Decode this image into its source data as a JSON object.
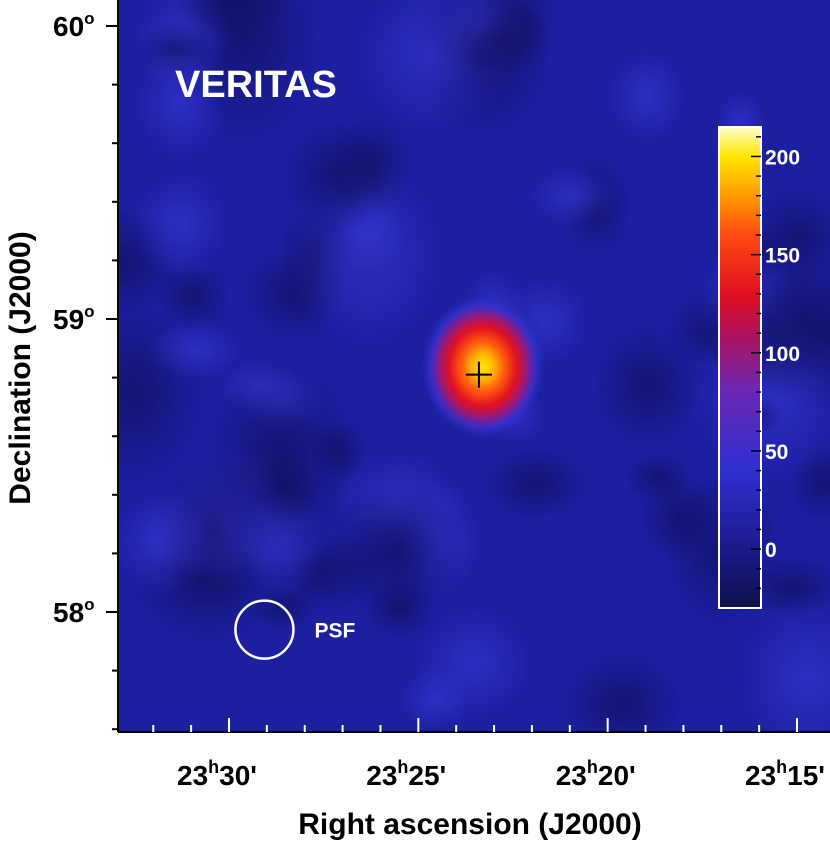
{
  "chart_data": {
    "type": "heatmap",
    "title": "VERITAS",
    "xlabel": "Right ascension (J2000)",
    "ylabel": "Declination (J2000)",
    "x_ticks": [
      {
        "value": 23.5,
        "label_hour": "23",
        "label_sup": "h",
        "label_min": "30'"
      },
      {
        "value": 23.4167,
        "label_hour": "23",
        "label_sup": "h",
        "label_min": "25'"
      },
      {
        "value": 23.3333,
        "label_hour": "23",
        "label_sup": "h",
        "label_min": "20'"
      },
      {
        "value": 23.25,
        "label_hour": "23",
        "label_sup": "h",
        "label_min": "15'"
      }
    ],
    "y_ticks": [
      {
        "value": 60,
        "label": "60",
        "label_sup": "o"
      },
      {
        "value": 59,
        "label": "59",
        "label_sup": "o"
      },
      {
        "value": 58,
        "label": "58",
        "label_sup": "o"
      }
    ],
    "colorbar": {
      "range": [
        -30,
        215
      ],
      "ticks": [
        200,
        150,
        100,
        50,
        0
      ],
      "stops": [
        {
          "v": -30,
          "color": "#10104a"
        },
        {
          "v": 0,
          "color": "#1a1a8c"
        },
        {
          "v": 40,
          "color": "#2f2fcf"
        },
        {
          "v": 80,
          "color": "#6a28b8"
        },
        {
          "v": 110,
          "color": "#b0125a"
        },
        {
          "v": 130,
          "color": "#e01020"
        },
        {
          "v": 160,
          "color": "#ff4a10"
        },
        {
          "v": 180,
          "color": "#ff9a00"
        },
        {
          "v": 200,
          "color": "#ffe600"
        },
        {
          "v": 215,
          "color": "#ffffcc"
        }
      ]
    },
    "background_color": "#1c1fa0",
    "source": {
      "ra": 23.39,
      "dec": 58.81,
      "peak_value": 210
    },
    "marker": {
      "ra": 23.39,
      "dec": 58.81,
      "symbol": "+"
    },
    "psf": {
      "ra": 23.48,
      "dec": 57.94,
      "label": "PSF"
    }
  }
}
